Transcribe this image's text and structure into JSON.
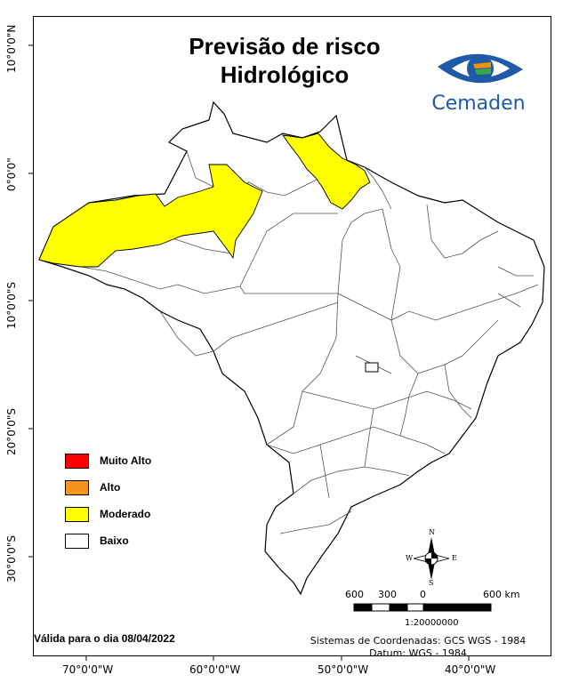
{
  "title": {
    "line1": "Previsão de risco",
    "line2": "Hidrológico"
  },
  "logo": {
    "name": "Cemaden",
    "colors": {
      "blue": "#1e5aa8",
      "orange": "#f39200",
      "green": "#3aa845"
    }
  },
  "legend": {
    "items": [
      {
        "label": "Muito Alto",
        "color": "#ff0000"
      },
      {
        "label": "Alto",
        "color": "#f7941d"
      },
      {
        "label": "Moderado",
        "color": "#ffff00"
      },
      {
        "label": "Baixo",
        "color": "#ffffff"
      }
    ]
  },
  "map": {
    "region_colors": {
      "moderado": "#ffff00",
      "baixo": "#ffffff",
      "border": "#000000",
      "internal_border": "#555555"
    },
    "lat_labels": [
      "10°0'0\"N",
      "0°0'0\"",
      "10°0'0\"S",
      "20°0'0\"S",
      "30°0'0\"S"
    ],
    "lon_labels": [
      "70°0'0\"W",
      "60°0'0\"W",
      "50°0'0\"W",
      "40°0'0\"W"
    ]
  },
  "compass": {
    "n": "N",
    "s": "S",
    "e": "E",
    "w": "W"
  },
  "scale_bar": {
    "labels": [
      "600",
      "300",
      "0",
      "600 km"
    ],
    "ratio": "1:20000000"
  },
  "footer": {
    "valid": "Válida para o dia 08/04/2022",
    "coord_system": "Sistemas de Coordenadas: GCS WGS - 1984",
    "datum": "Datum: WGS - 1984"
  }
}
